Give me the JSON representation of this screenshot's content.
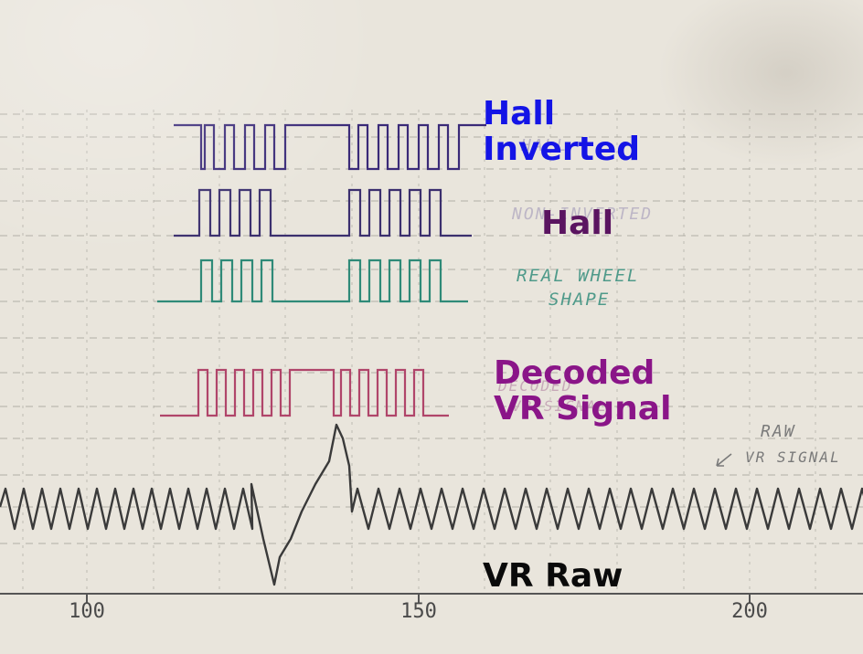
{
  "labels": {
    "hall_inverted_line1": "Hall",
    "hall_inverted_line2": "Inverted",
    "hall": "Hall",
    "decoded_line1": "Decoded",
    "decoded_line2": "VR Signal",
    "vr_raw": "VR Raw"
  },
  "handwritten": {
    "hall": "HALL",
    "non_inverted": "NON-INVERTED",
    "real_wheel_1": "REAL WHEEL",
    "real_wheel_2": "SHAPE",
    "decoded_faded_1": "DECODED",
    "decoded_faded_2": "VR SIGNAL",
    "raw_1": "RAW",
    "raw_2": "VR SIGNAL"
  },
  "axis": {
    "ticks": [
      "100",
      "150",
      "200"
    ]
  },
  "colors": {
    "paper": "#e9e5dc",
    "grid": "#9a9890",
    "hall_inverted_trace": "#3a2a78",
    "hall_trace": "#3b2f6e",
    "real_wheel_trace": "#2f8a78",
    "decoded_trace": "#b0456a",
    "vr_raw_trace": "#3a3a3a",
    "hall_inverted_label": "#1414e6",
    "hall_label": "#5a1460",
    "decoded_label": "#8a1588",
    "vr_raw_label": "#0a0a0a"
  }
}
